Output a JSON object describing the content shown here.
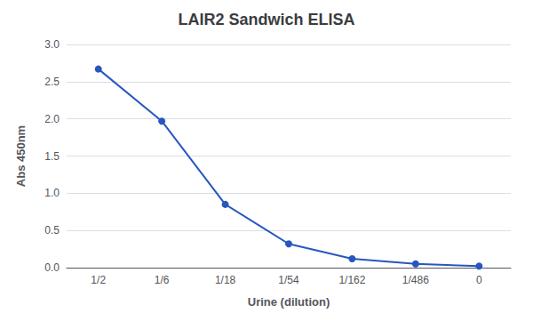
{
  "chart_data": {
    "type": "line",
    "title": "LAIR2 Sandwich ELISA",
    "xlabel": "Urine (dilution)",
    "ylabel": "Abs 450nm",
    "categories": [
      "1/2",
      "1/6",
      "1/18",
      "1/54",
      "1/162",
      "1/486",
      "0"
    ],
    "values": [
      2.67,
      1.97,
      0.85,
      0.32,
      0.12,
      0.05,
      0.02
    ],
    "color": "#2657BF",
    "marker": "circle",
    "ylim": [
      0.0,
      3.0
    ],
    "yticks": [
      {
        "value": 0,
        "label": "0.0"
      },
      0.5,
      {
        "value": 1,
        "label": "1.0"
      },
      1.5,
      {
        "value": 2,
        "label": "2.0"
      },
      2.5,
      {
        "value": 3,
        "label": "3.0"
      }
    ],
    "grid": true
  }
}
